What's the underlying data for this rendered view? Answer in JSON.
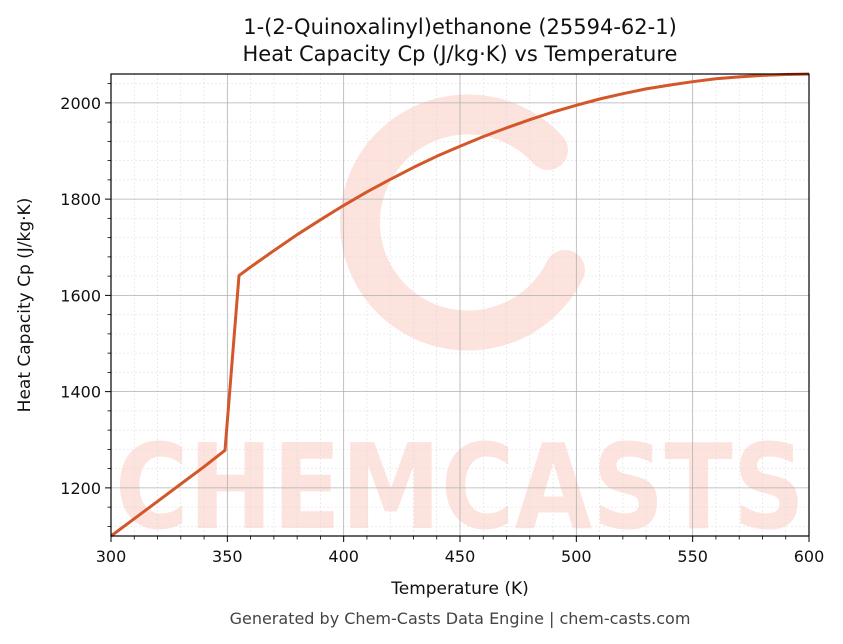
{
  "title_line1": "1-(2-Quinoxalinyl)ethanone (25594-62-1)",
  "title_line2": "Heat Capacity Cp (J/kg·K) vs Temperature",
  "footer": "Generated by Chem-Casts Data Engine | chem-casts.com",
  "watermark": "CHEMCASTS",
  "colors": {
    "line": "#d4572a",
    "watermark": "#fde3de",
    "grid": "#b0b0b0"
  },
  "chart_data": {
    "type": "line",
    "xlabel": "Temperature (K)",
    "ylabel": "Heat Capacity Cp (J/kg·K)",
    "xlim": [
      300,
      600
    ],
    "ylim": [
      1100,
      2060
    ],
    "xticks": [
      300,
      350,
      400,
      450,
      500,
      550,
      600
    ],
    "yticks": [
      1200,
      1400,
      1600,
      1800,
      2000
    ],
    "grid": true,
    "series": [
      {
        "x": [
          300,
          310,
          320,
          330,
          340,
          349,
          355,
          360,
          370,
          380,
          390,
          400,
          410,
          420,
          430,
          440,
          450,
          460,
          470,
          480,
          490,
          500,
          510,
          520,
          530,
          540,
          550,
          560,
          570,
          580,
          590,
          600
        ],
        "y": [
          1100,
          1136,
          1172,
          1208,
          1244,
          1278,
          1641,
          1659,
          1693,
          1726,
          1757,
          1787,
          1815,
          1841,
          1866,
          1889,
          1910,
          1930,
          1948,
          1965,
          1981,
          1995,
          2008,
          2019,
          2029,
          2037,
          2044,
          2050,
          2054,
          2057,
          2059,
          2060
        ]
      }
    ]
  }
}
